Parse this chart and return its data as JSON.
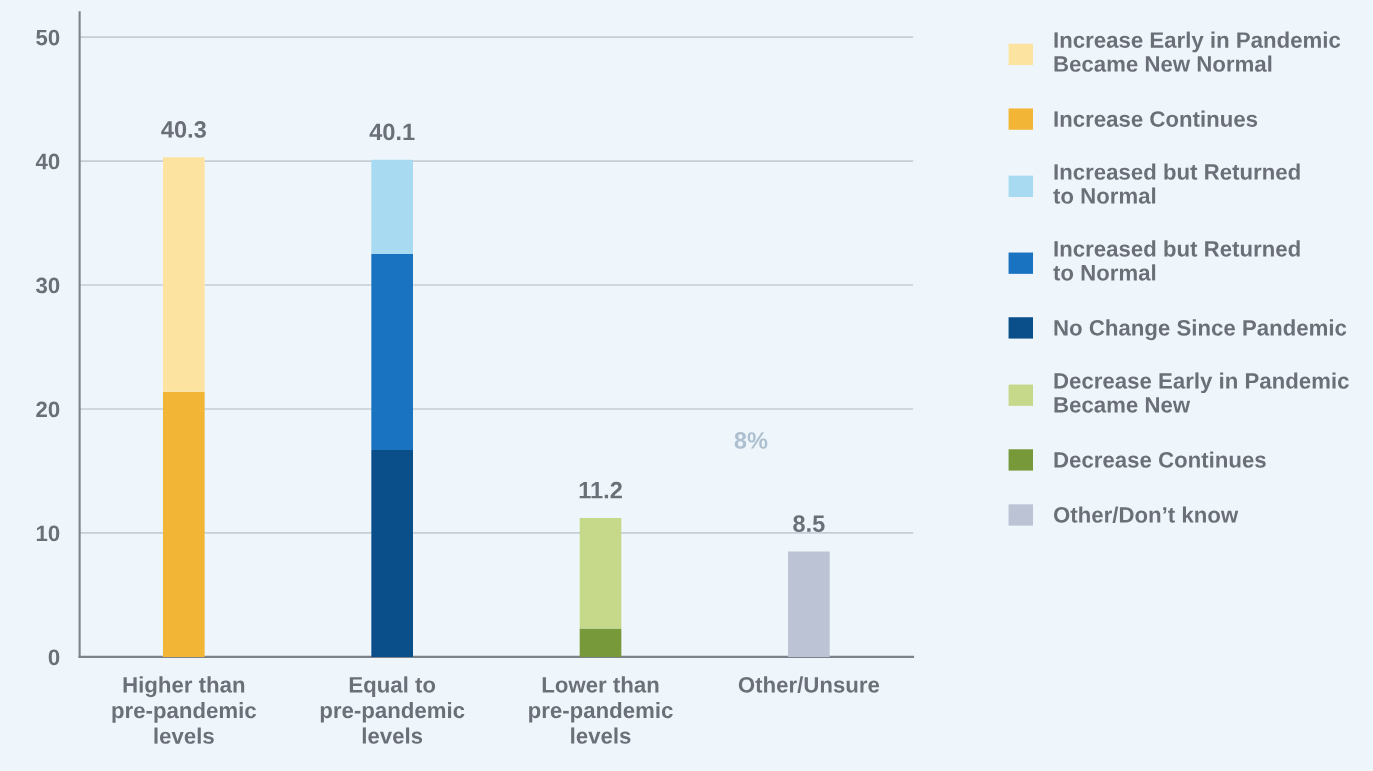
{
  "chart_data": {
    "type": "bar",
    "stacked": true,
    "categories": [
      "Higher than\npre-pandemic\nlevels",
      "Equal to\npre-pandemic\nlevels",
      "Lower than\npre-pandemic\nlevels",
      "Other/Unsure"
    ],
    "series": [
      {
        "name": "Other/Don’t know",
        "color": "#bcc3d4",
        "values": [
          null,
          null,
          null,
          8.5
        ]
      },
      {
        "name": "Decrease Continues",
        "color": "#78993a",
        "values": [
          null,
          null,
          2.3,
          null
        ]
      },
      {
        "name": "Decrease Early in Pandemic\nBecame New",
        "color": "#c6d98a",
        "values": [
          null,
          null,
          8.9,
          null
        ]
      },
      {
        "name": "No Change Since Pandemic",
        "color": "#0b4f8a",
        "values": [
          null,
          16.7,
          null,
          null
        ]
      },
      {
        "name": "Increased but Returned\nto Normal",
        "color": "#1a73c0",
        "values": [
          null,
          15.8,
          null,
          null
        ]
      },
      {
        "name": "Increased but Returned\nto Normal",
        "color": "#a8daf2",
        "values": [
          null,
          7.6,
          null,
          null
        ]
      },
      {
        "name": "Increase Continues",
        "color": "#f2b535",
        "values": [
          21.4,
          null,
          null,
          null
        ]
      },
      {
        "name": "Increase Early in Pandemic\nBecame New Normal",
        "color": "#fde3a0",
        "values": [
          18.9,
          null,
          null,
          null
        ]
      }
    ],
    "totals": [
      "40.3",
      "40.1",
      "11.2",
      "8.5"
    ],
    "annotations": [
      "8%"
    ],
    "ylim": [
      0,
      52
    ],
    "yticks": [
      0,
      10,
      20,
      30,
      40,
      50
    ],
    "grid": "y",
    "legend": "right"
  }
}
